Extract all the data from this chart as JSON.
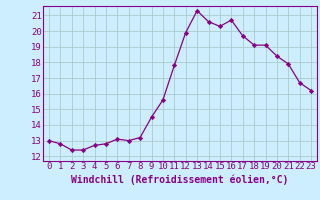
{
  "x": [
    0,
    1,
    2,
    3,
    4,
    5,
    6,
    7,
    8,
    9,
    10,
    11,
    12,
    13,
    14,
    15,
    16,
    17,
    18,
    19,
    20,
    21,
    22,
    23
  ],
  "y": [
    13.0,
    12.8,
    12.4,
    12.4,
    12.7,
    12.8,
    13.1,
    13.0,
    13.2,
    14.5,
    15.6,
    17.8,
    19.9,
    21.3,
    20.6,
    20.3,
    20.7,
    19.7,
    19.1,
    19.1,
    18.4,
    17.9,
    16.7,
    16.2
  ],
  "line_color": "#880088",
  "marker": "D",
  "marker_size": 2.2,
  "bg_color": "#cceeff",
  "grid_color": "#aacccc",
  "xlabel": "Windchill (Refroidissement éolien,°C)",
  "xlim": [
    -0.5,
    23.5
  ],
  "ylim": [
    11.7,
    21.6
  ],
  "xticks": [
    0,
    1,
    2,
    3,
    4,
    5,
    6,
    7,
    8,
    9,
    10,
    11,
    12,
    13,
    14,
    15,
    16,
    17,
    18,
    19,
    20,
    21,
    22,
    23
  ],
  "yticks": [
    12,
    13,
    14,
    15,
    16,
    17,
    18,
    19,
    20,
    21
  ],
  "tick_fontsize": 6.5,
  "xlabel_fontsize": 7.0,
  "spine_color": "#880088",
  "text_color": "#880088"
}
